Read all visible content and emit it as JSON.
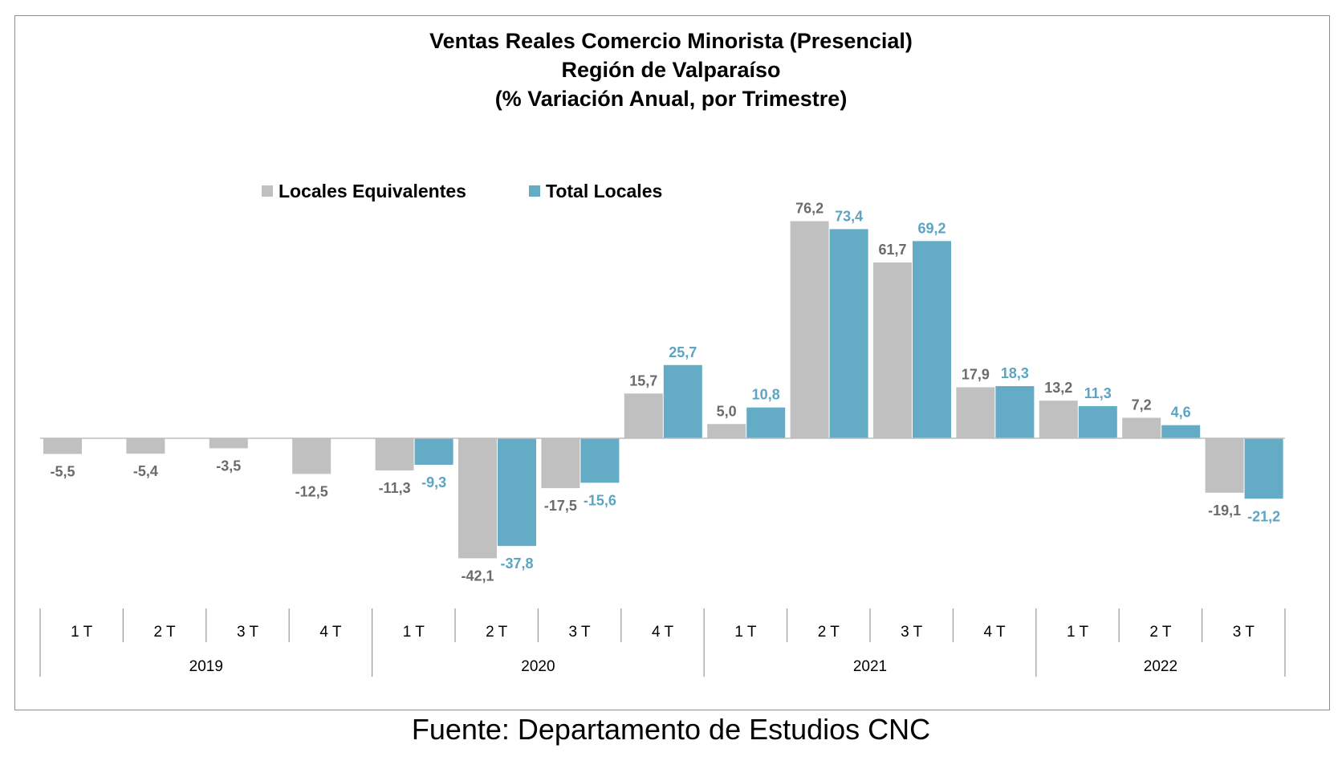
{
  "page": {
    "source_note": "Fuente: Departamento de Estudios CNC"
  },
  "chart_data": {
    "type": "bar",
    "title": "Ventas Reales Comercio Minorista (Presencial)",
    "title_lines": [
      "Ventas Reales Comercio Minorista (Presencial)",
      "Región de Valparaíso",
      "(% Variación Anual, por Trimestre)"
    ],
    "xlabel": "",
    "ylabel": "",
    "legend_position": "top-left",
    "grid": false,
    "categories": [
      "1 T",
      "2 T",
      "3 T",
      "4 T",
      "1 T",
      "2 T",
      "3 T",
      "4 T",
      "1 T",
      "2 T",
      "3 T",
      "4 T",
      "1 T",
      "2 T",
      "3 T"
    ],
    "year_groups": [
      {
        "year": "2019",
        "count": 4
      },
      {
        "year": "2020",
        "count": 4
      },
      {
        "year": "2021",
        "count": 4
      },
      {
        "year": "2022",
        "count": 3
      }
    ],
    "series": [
      {
        "name": "Locales Equivalentes",
        "color": "#c0c0c0",
        "label_color": "#6b6b6b",
        "values": [
          -5.5,
          -5.4,
          -3.5,
          -12.5,
          -11.3,
          -42.1,
          -17.5,
          15.7,
          5.0,
          76.2,
          61.7,
          17.9,
          13.2,
          7.2,
          -19.1
        ],
        "labels": [
          "-5,5",
          "-5,4",
          "-3,5",
          "-12,5",
          "-11,3",
          "-42,1",
          "-17,5",
          "15,7",
          "5,0",
          "76,2",
          "61,7",
          "17,9",
          "13,2",
          "7,2",
          "-19,1"
        ]
      },
      {
        "name": "Total Locales",
        "color": "#64abc5",
        "label_color": "#5ba5c2",
        "values": [
          null,
          null,
          null,
          null,
          -9.3,
          -37.8,
          -15.6,
          25.7,
          10.8,
          73.4,
          69.2,
          18.3,
          11.3,
          4.6,
          -21.2
        ],
        "labels": [
          "",
          "",
          "",
          "",
          "-9,3",
          "-37,8",
          "-15,6",
          "25,7",
          "10,8",
          "73,4",
          "69,2",
          "18,3",
          "11,3",
          "4,6",
          "-21,2"
        ]
      }
    ]
  }
}
